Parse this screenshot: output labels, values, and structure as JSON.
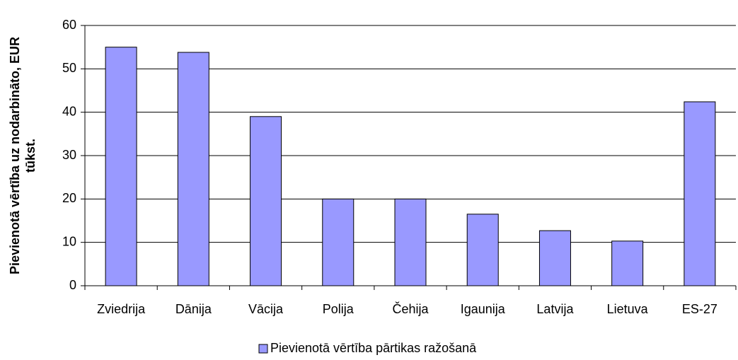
{
  "chart_data": {
    "type": "bar",
    "ylabel": [
      "Pievienotā vērtība uz nodarbināto, EUR",
      "tūkst."
    ],
    "categories": [
      "Zviedrija",
      "Dānija",
      "Vācija",
      "Polija",
      "Čehija",
      "Igaunija",
      "Latvija",
      "Lietuva",
      "ES-27"
    ],
    "series": [
      {
        "name": "Pievienotā vērtība pārtikas ražošanā",
        "color": "#9999ff",
        "values": [
          55,
          53.8,
          39,
          20,
          20,
          16.5,
          12.7,
          10.3,
          42.4
        ]
      }
    ],
    "ylim": [
      0,
      60
    ],
    "yticks": [
      0,
      10,
      20,
      30,
      40,
      50,
      60
    ],
    "grid": true,
    "legend": "bottom"
  }
}
